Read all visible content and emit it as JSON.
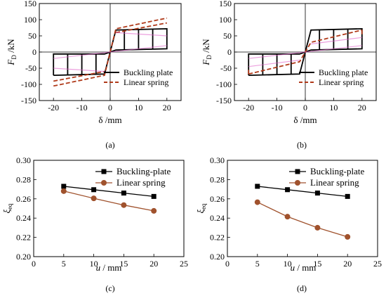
{
  "chart_data": [
    {
      "panel_label": "(a)",
      "type": "line",
      "subtype": "hysteresis",
      "ylabel_main": "F",
      "ylabel_sub": "D",
      "ylabel_unit": " /kN",
      "xlabel": "δ /mm",
      "xlim": [
        -25,
        25
      ],
      "ylim": [
        -150,
        150
      ],
      "xticks": [
        -20,
        -10,
        0,
        10,
        20
      ],
      "yticks": [
        -150,
        -100,
        -50,
        0,
        50,
        100,
        150
      ],
      "legend_position": "lower-right",
      "series": [
        {
          "name": "Buckling plate",
          "color": "#000000",
          "dash": "solid",
          "paths": [
            [
              [
                -20,
                -72
              ],
              [
                -20,
                -6
              ],
              [
                -2,
                -6
              ],
              [
                0,
                0
              ],
              [
                2,
                6
              ],
              [
                20,
                10
              ],
              [
                20,
                72
              ],
              [
                2,
                68
              ],
              [
                0,
                0
              ],
              [
                -2,
                -68
              ],
              [
                -20,
                -72
              ]
            ],
            [
              [
                -15,
                -72
              ],
              [
                -15,
                -8
              ]
            ],
            [
              [
                -10,
                -71
              ],
              [
                -10,
                -7
              ]
            ],
            [
              [
                -5,
                -69
              ],
              [
                -5,
                -6
              ]
            ],
            [
              [
                5,
                8
              ],
              [
                5,
                69
              ]
            ],
            [
              [
                10,
                9
              ],
              [
                10,
                70
              ]
            ],
            [
              [
                15,
                10
              ],
              [
                15,
                71
              ]
            ]
          ]
        },
        {
          "name": "Linear spring",
          "color": "#b03a1a",
          "dash": "dashed",
          "paths": [
            [
              [
                -20,
                -105
              ],
              [
                -2,
                -72
              ],
              [
                0,
                0
              ],
              [
                2,
                72
              ],
              [
                20,
                105
              ]
            ],
            [
              [
                -20,
                -90
              ],
              [
                -2,
                -60
              ]
            ],
            [
              [
                2,
                60
              ],
              [
                20,
                90
              ]
            ]
          ]
        },
        {
          "name": "",
          "color": "#e060c8",
          "dash": "solid",
          "paths": [
            [
              [
                -20,
                -20
              ],
              [
                20,
                20
              ]
            ],
            [
              [
                -20,
                -50
              ],
              [
                -2,
                -60
              ]
            ],
            [
              [
                2,
                60
              ],
              [
                20,
                50
              ]
            ]
          ]
        }
      ]
    },
    {
      "panel_label": "(b)",
      "type": "line",
      "subtype": "hysteresis",
      "ylabel_main": "F",
      "ylabel_sub": "D",
      "ylabel_unit": " /kN",
      "xlabel": "δ /mm",
      "xlim": [
        -25,
        25
      ],
      "ylim": [
        -150,
        150
      ],
      "xticks": [
        -20,
        -10,
        0,
        10,
        20
      ],
      "yticks": [
        -150,
        -100,
        -50,
        0,
        50,
        100,
        150
      ],
      "legend_position": "lower-right",
      "series": [
        {
          "name": "Buckling plate",
          "color": "#000000",
          "dash": "solid",
          "paths": [
            [
              [
                -20,
                -72
              ],
              [
                -20,
                -6
              ],
              [
                -2,
                -6
              ],
              [
                0,
                0
              ],
              [
                2,
                6
              ],
              [
                20,
                10
              ],
              [
                20,
                72
              ],
              [
                2,
                68
              ],
              [
                0,
                0
              ],
              [
                -2,
                -68
              ],
              [
                -20,
                -72
              ]
            ],
            [
              [
                -15,
                -72
              ],
              [
                -15,
                -8
              ]
            ],
            [
              [
                -10,
                -71
              ],
              [
                -10,
                -7
              ]
            ],
            [
              [
                -5,
                -69
              ],
              [
                -5,
                -6
              ]
            ],
            [
              [
                5,
                8
              ],
              [
                5,
                69
              ]
            ],
            [
              [
                10,
                9
              ],
              [
                10,
                70
              ]
            ],
            [
              [
                15,
                10
              ],
              [
                15,
                71
              ]
            ]
          ]
        },
        {
          "name": "Linear spring",
          "color": "#b03a1a",
          "dash": "dashed",
          "paths": [
            [
              [
                -20,
                -68
              ],
              [
                -2,
                -30
              ],
              [
                0,
                0
              ],
              [
                2,
                30
              ],
              [
                20,
                68
              ]
            ],
            [
              [
                -20,
                -68
              ],
              [
                -20,
                -55
              ]
            ],
            [
              [
                20,
                55
              ],
              [
                20,
                68
              ]
            ]
          ]
        },
        {
          "name": "",
          "color": "#e060c8",
          "dash": "solid",
          "paths": [
            [
              [
                -20,
                -20
              ],
              [
                20,
                20
              ]
            ],
            [
              [
                -20,
                -45
              ],
              [
                -2,
                -25
              ]
            ],
            [
              [
                2,
                25
              ],
              [
                20,
                45
              ]
            ]
          ]
        }
      ]
    },
    {
      "panel_label": "(c)",
      "type": "line",
      "ylabel_main": "ξ",
      "ylabel_sub": "eq",
      "ylabel_unit": "",
      "xlabel_main": "u",
      "xlabel_unit": " / mm",
      "xlim": [
        0,
        25
      ],
      "ylim": [
        0.2,
        0.3
      ],
      "xticks": [
        0,
        5,
        10,
        15,
        20,
        25
      ],
      "yticks": [
        0.2,
        0.22,
        0.24,
        0.26,
        0.28,
        0.3
      ],
      "legend_position": "top-right",
      "series": [
        {
          "name": "Buckling-plate",
          "color": "#000000",
          "marker": "square",
          "x": [
            5,
            10,
            15,
            20
          ],
          "y": [
            0.273,
            0.2695,
            0.266,
            0.2625
          ]
        },
        {
          "name": "Linear spring",
          "color": "#a0522d",
          "marker": "circle",
          "x": [
            5,
            10,
            15,
            20
          ],
          "y": [
            0.268,
            0.2605,
            0.2535,
            0.2475
          ]
        }
      ]
    },
    {
      "panel_label": "(d)",
      "type": "line",
      "ylabel_main": "ξ",
      "ylabel_sub": "eq",
      "ylabel_unit": "",
      "xlabel_main": "u",
      "xlabel_unit": " / mm",
      "xlim": [
        0,
        25
      ],
      "ylim": [
        0.2,
        0.3
      ],
      "xticks": [
        0,
        5,
        10,
        15,
        20,
        25
      ],
      "yticks": [
        0.2,
        0.22,
        0.24,
        0.26,
        0.28,
        0.3
      ],
      "legend_position": "top-right",
      "series": [
        {
          "name": "Buckling-plate",
          "color": "#000000",
          "marker": "square",
          "x": [
            5,
            10,
            15,
            20
          ],
          "y": [
            0.273,
            0.2695,
            0.266,
            0.2625
          ]
        },
        {
          "name": "Linear spring",
          "color": "#a0522d",
          "marker": "circle",
          "x": [
            5,
            10,
            15,
            20
          ],
          "y": [
            0.2565,
            0.2415,
            0.23,
            0.2205
          ]
        }
      ]
    }
  ]
}
